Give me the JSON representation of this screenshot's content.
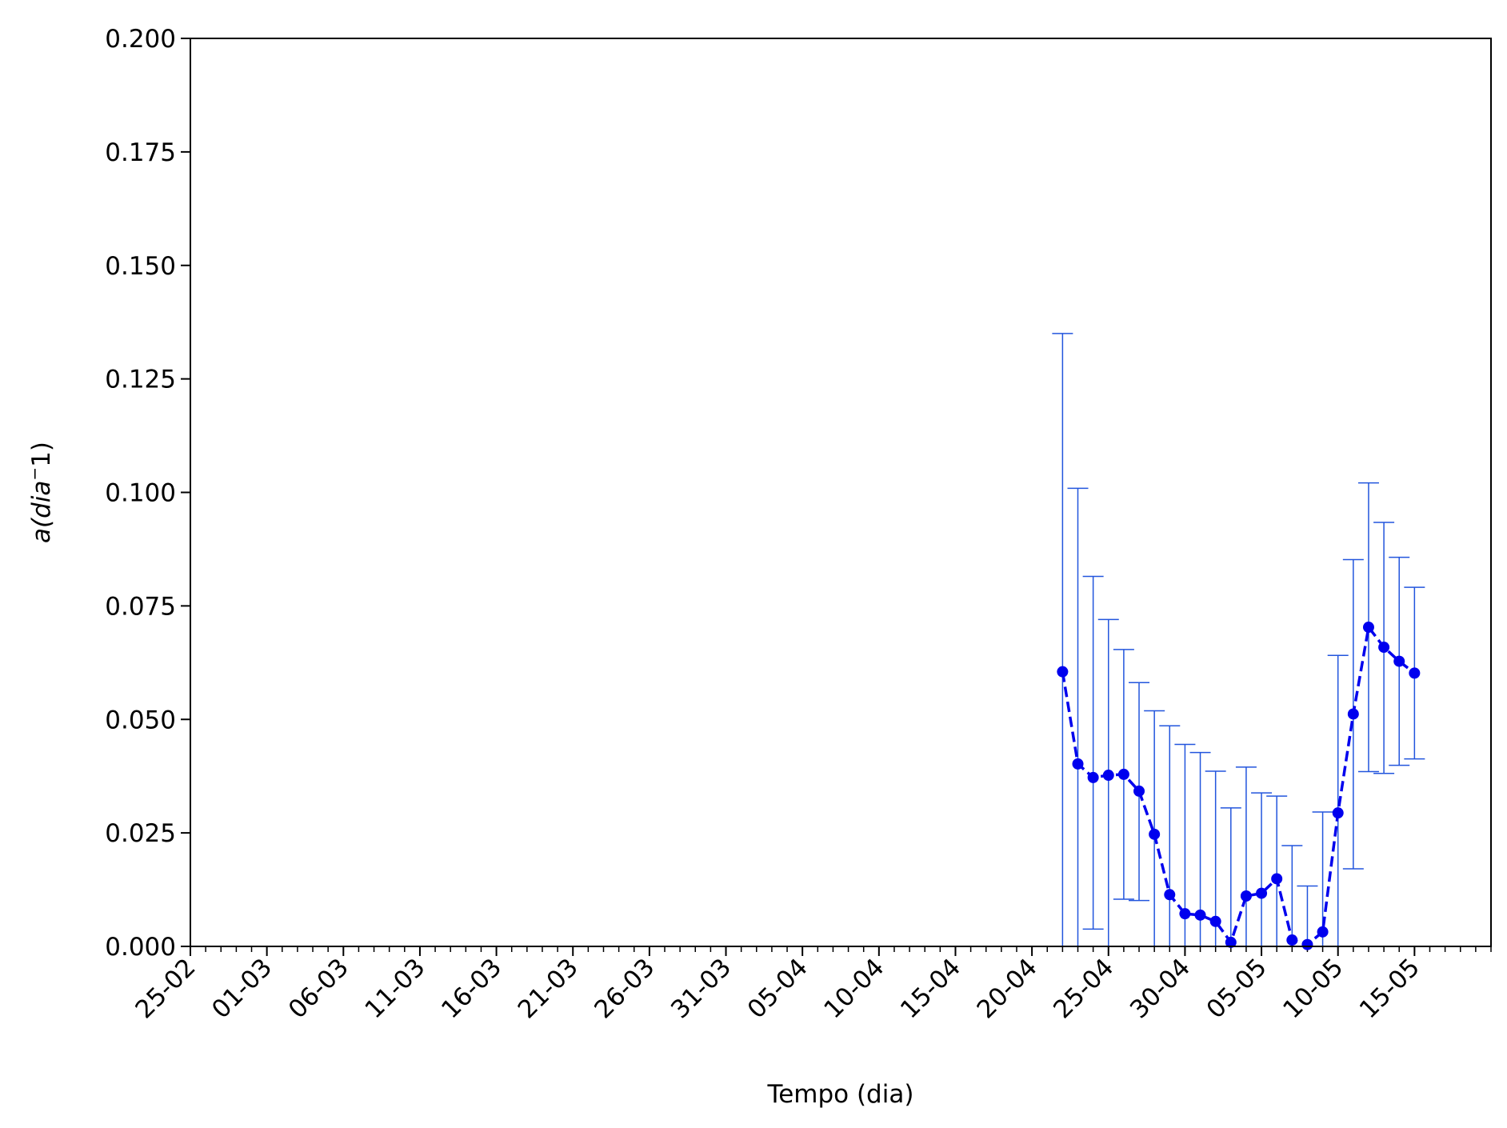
{
  "chart_data": {
    "type": "line",
    "xlabel": "Tempo (dia)",
    "ylabel_base": "a(dia",
    "ylabel_sup": "−",
    "ylabel_tail": "1)",
    "ylim": [
      0,
      0.2
    ],
    "xlim": [
      "2020-02-25",
      "2020-05-20"
    ],
    "grid": false,
    "y_ticks": [
      {
        "value": 0.0,
        "label": "0.000"
      },
      {
        "value": 0.025,
        "label": "0.025"
      },
      {
        "value": 0.05,
        "label": "0.050"
      },
      {
        "value": 0.075,
        "label": "0.075"
      },
      {
        "value": 0.1,
        "label": "0.100"
      },
      {
        "value": 0.125,
        "label": "0.125"
      },
      {
        "value": 0.15,
        "label": "0.150"
      },
      {
        "value": 0.175,
        "label": "0.175"
      },
      {
        "value": 0.2,
        "label": "0.200"
      }
    ],
    "x_ticks": [
      {
        "date": "2020-02-25",
        "label": "25-02"
      },
      {
        "date": "2020-03-01",
        "label": "01-03"
      },
      {
        "date": "2020-03-06",
        "label": "06-03"
      },
      {
        "date": "2020-03-11",
        "label": "11-03"
      },
      {
        "date": "2020-03-16",
        "label": "16-03"
      },
      {
        "date": "2020-03-21",
        "label": "21-03"
      },
      {
        "date": "2020-03-26",
        "label": "26-03"
      },
      {
        "date": "2020-03-31",
        "label": "31-03"
      },
      {
        "date": "2020-04-05",
        "label": "05-04"
      },
      {
        "date": "2020-04-10",
        "label": "10-04"
      },
      {
        "date": "2020-04-15",
        "label": "15-04"
      },
      {
        "date": "2020-04-20",
        "label": "20-04"
      },
      {
        "date": "2020-04-25",
        "label": "25-04"
      },
      {
        "date": "2020-04-30",
        "label": "30-04"
      },
      {
        "date": "2020-05-05",
        "label": "05-05"
      },
      {
        "date": "2020-05-10",
        "label": "10-05"
      },
      {
        "date": "2020-05-15",
        "label": "15-05"
      }
    ],
    "colors": {
      "line": "#0000ee",
      "error": "#2255dd",
      "axis": "#000000"
    },
    "series": [
      {
        "points": [
          {
            "date": "2020-04-22",
            "y": 0.0605,
            "lo": 0.0,
            "hi": 0.135
          },
          {
            "date": "2020-04-23",
            "y": 0.0402,
            "lo": 0.0,
            "hi": 0.1009
          },
          {
            "date": "2020-04-24",
            "y": 0.0372,
            "lo": 0.0038,
            "hi": 0.0815
          },
          {
            "date": "2020-04-25",
            "y": 0.0377,
            "lo": 0.0,
            "hi": 0.072
          },
          {
            "date": "2020-04-26",
            "y": 0.0379,
            "lo": 0.0104,
            "hi": 0.0654
          },
          {
            "date": "2020-04-27",
            "y": 0.0342,
            "lo": 0.0101,
            "hi": 0.0581
          },
          {
            "date": "2020-04-28",
            "y": 0.0247,
            "lo": 0.0,
            "hi": 0.0519
          },
          {
            "date": "2020-04-29",
            "y": 0.0114,
            "lo": 0.0,
            "hi": 0.0486
          },
          {
            "date": "2020-04-30",
            "y": 0.0072,
            "lo": 0.0,
            "hi": 0.0445
          },
          {
            "date": "2020-05-01",
            "y": 0.0069,
            "lo": 0.0,
            "hi": 0.0427
          },
          {
            "date": "2020-05-02",
            "y": 0.0055,
            "lo": 0.0,
            "hi": 0.0386
          },
          {
            "date": "2020-05-03",
            "y": 0.0009,
            "lo": 0.0,
            "hi": 0.0305
          },
          {
            "date": "2020-05-04",
            "y": 0.0111,
            "lo": 0.0,
            "hi": 0.0395
          },
          {
            "date": "2020-05-05",
            "y": 0.0117,
            "lo": 0.0,
            "hi": 0.0338
          },
          {
            "date": "2020-05-06",
            "y": 0.0149,
            "lo": 0.0,
            "hi": 0.0331
          },
          {
            "date": "2020-05-07",
            "y": 0.0014,
            "lo": 0.0,
            "hi": 0.0222
          },
          {
            "date": "2020-05-08",
            "y": 0.0004,
            "lo": 0.0,
            "hi": 0.0133
          },
          {
            "date": "2020-05-09",
            "y": 0.0032,
            "lo": 0.0,
            "hi": 0.0296
          },
          {
            "date": "2020-05-10",
            "y": 0.0294,
            "lo": 0.0,
            "hi": 0.0641
          },
          {
            "date": "2020-05-11",
            "y": 0.0512,
            "lo": 0.0171,
            "hi": 0.0852
          },
          {
            "date": "2020-05-12",
            "y": 0.0703,
            "lo": 0.0385,
            "hi": 0.1021
          },
          {
            "date": "2020-05-13",
            "y": 0.0659,
            "lo": 0.0381,
            "hi": 0.0934
          },
          {
            "date": "2020-05-14",
            "y": 0.0628,
            "lo": 0.0399,
            "hi": 0.0857
          },
          {
            "date": "2020-05-15",
            "y": 0.0602,
            "lo": 0.0413,
            "hi": 0.0791
          }
        ]
      }
    ]
  }
}
